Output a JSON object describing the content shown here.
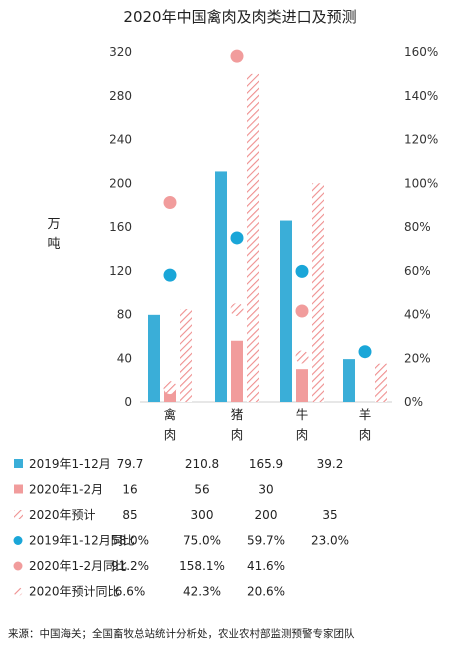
{
  "chart_data": {
    "type": "bar",
    "title": "2020年中国禽肉及肉类进口及预测",
    "ylabel_chars": [
      "万",
      "吨"
    ],
    "categories": [
      [
        "禽",
        "肉"
      ],
      [
        "猪",
        "肉"
      ],
      [
        "牛",
        "肉"
      ],
      [
        "羊",
        "肉"
      ]
    ],
    "left_axis": {
      "ylim": [
        0,
        320
      ],
      "ticks": [
        "0",
        "40",
        "80",
        "120",
        "160",
        "200",
        "240",
        "280",
        "320"
      ]
    },
    "right_axis": {
      "ylim": [
        0,
        160
      ],
      "ticks": [
        "0%",
        "20%",
        "40%",
        "60%",
        "80%",
        "100%",
        "120%",
        "140%",
        "160%"
      ]
    },
    "bar_series": [
      {
        "name": "2019年1-12月",
        "values": [
          79.7,
          210.8,
          165.9,
          39.2
        ],
        "labels": [
          "79.7",
          "210.8",
          "165.9",
          "39.2"
        ],
        "color": "#3aaed8",
        "style": "solid"
      },
      {
        "name": "2020年1-2月",
        "values": [
          16,
          56,
          30,
          null
        ],
        "labels": [
          "16",
          "56",
          "30",
          ""
        ],
        "color": "#f19c9c",
        "style": "solid"
      },
      {
        "name": "2020年预计",
        "values": [
          85,
          300,
          200,
          35
        ],
        "labels": [
          "85",
          "300",
          "200",
          "35"
        ],
        "color": "#ef8f8f",
        "style": "hatch"
      }
    ],
    "dot_series": [
      {
        "name": "2019年1-12月同比",
        "values": [
          58.0,
          75.0,
          59.7,
          23.0
        ],
        "labels": [
          "58.0%",
          "75.0%",
          "59.7%",
          "23.0%"
        ],
        "color": "#1aa6d8",
        "style": "solid"
      },
      {
        "name": "2020年1-2月同比",
        "values": [
          91.2,
          158.1,
          41.6,
          null
        ],
        "labels": [
          "91.2%",
          "158.1%",
          "41.6%",
          ""
        ],
        "color": "#f19c9c",
        "style": "solid"
      },
      {
        "name": "2020年预计同比",
        "values": [
          6.6,
          42.3,
          20.6,
          null
        ],
        "labels": [
          "6.6%",
          "42.3%",
          "20.6%",
          ""
        ],
        "color": "#ef8f8f",
        "style": "hatch"
      }
    ],
    "grid": false,
    "legend": "table-below"
  },
  "source": "来源：中国海关；全国畜牧总站统计分析处，农业农村部监测预警专家团队"
}
